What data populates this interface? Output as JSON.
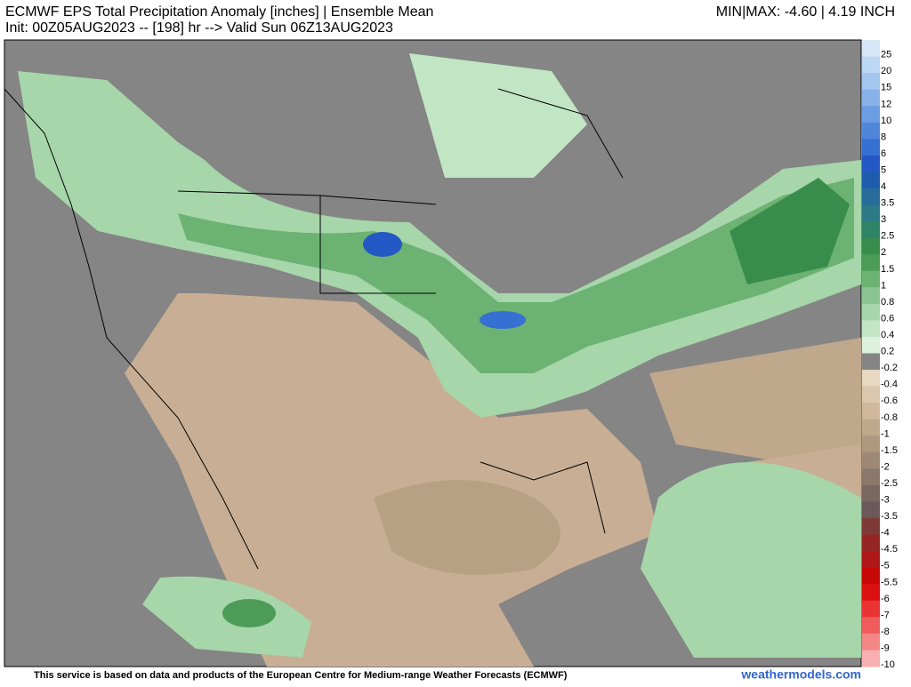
{
  "header": {
    "title": "ECMWF EPS Total Precipitation Anomaly [inches] | Ensemble Mean",
    "subtitle": "Init: 00Z05AUG2023 -- [198] hr --> Valid Sun 06Z13AUG2023",
    "minmax": "MIN|MAX: -4.60 | 4.19 INCH"
  },
  "colorbar": [
    {
      "label": "25",
      "color": "#d6e8f8"
    },
    {
      "label": "20",
      "color": "#bcd8f2"
    },
    {
      "label": "15",
      "color": "#a2c6ee"
    },
    {
      "label": "12",
      "color": "#88b2e8"
    },
    {
      "label": "10",
      "color": "#6c9ce2"
    },
    {
      "label": "8",
      "color": "#5086da"
    },
    {
      "label": "6",
      "color": "#3670d2"
    },
    {
      "label": "5",
      "color": "#2458c4"
    },
    {
      "label": "4",
      "color": "#1f5cae"
    },
    {
      "label": "3.5",
      "color": "#276c9a"
    },
    {
      "label": "3",
      "color": "#2c7a86"
    },
    {
      "label": "2.5",
      "color": "#2f8466"
    },
    {
      "label": "2",
      "color": "#388c4c"
    },
    {
      "label": "1.5",
      "color": "#4c9c58"
    },
    {
      "label": "1",
      "color": "#6cb272"
    },
    {
      "label": "0.8",
      "color": "#8ac492"
    },
    {
      "label": "0.6",
      "color": "#a6d6aa"
    },
    {
      "label": "0.4",
      "color": "#c2e6c4"
    },
    {
      "label": "0.2",
      "color": "#dcf2dc"
    },
    {
      "label": "-0.2",
      "color": "#858585"
    },
    {
      "label": "-0.4",
      "color": "#e8d8c2"
    },
    {
      "label": "-0.6",
      "color": "#dcc8ae"
    },
    {
      "label": "-0.8",
      "color": "#cfb89c"
    },
    {
      "label": "-1",
      "color": "#c0a88c"
    },
    {
      "label": "-1.5",
      "color": "#b09880"
    },
    {
      "label": "-2",
      "color": "#9e8874"
    },
    {
      "label": "-2.5",
      "color": "#8c786a"
    },
    {
      "label": "-3",
      "color": "#7a6860"
    },
    {
      "label": "-3.5",
      "color": "#6c5858"
    },
    {
      "label": "-4",
      "color": "#7e3a36"
    },
    {
      "label": "-4.5",
      "color": "#962626"
    },
    {
      "label": "-5",
      "color": "#ae1818"
    },
    {
      "label": "-5.5",
      "color": "#c80808"
    },
    {
      "label": "-6",
      "color": "#dc1010"
    },
    {
      "label": "-7",
      "color": "#ea3434"
    },
    {
      "label": "-8",
      "color": "#f05c5c"
    },
    {
      "label": "-9",
      "color": "#f48686"
    },
    {
      "label": "-10",
      "color": "#f8b0b0"
    }
  ],
  "footer": {
    "notice": "This service is based on data and products of the European Centre for Medium-range Weather Forecasts (ECMWF)",
    "site": "weathermodels.com"
  }
}
